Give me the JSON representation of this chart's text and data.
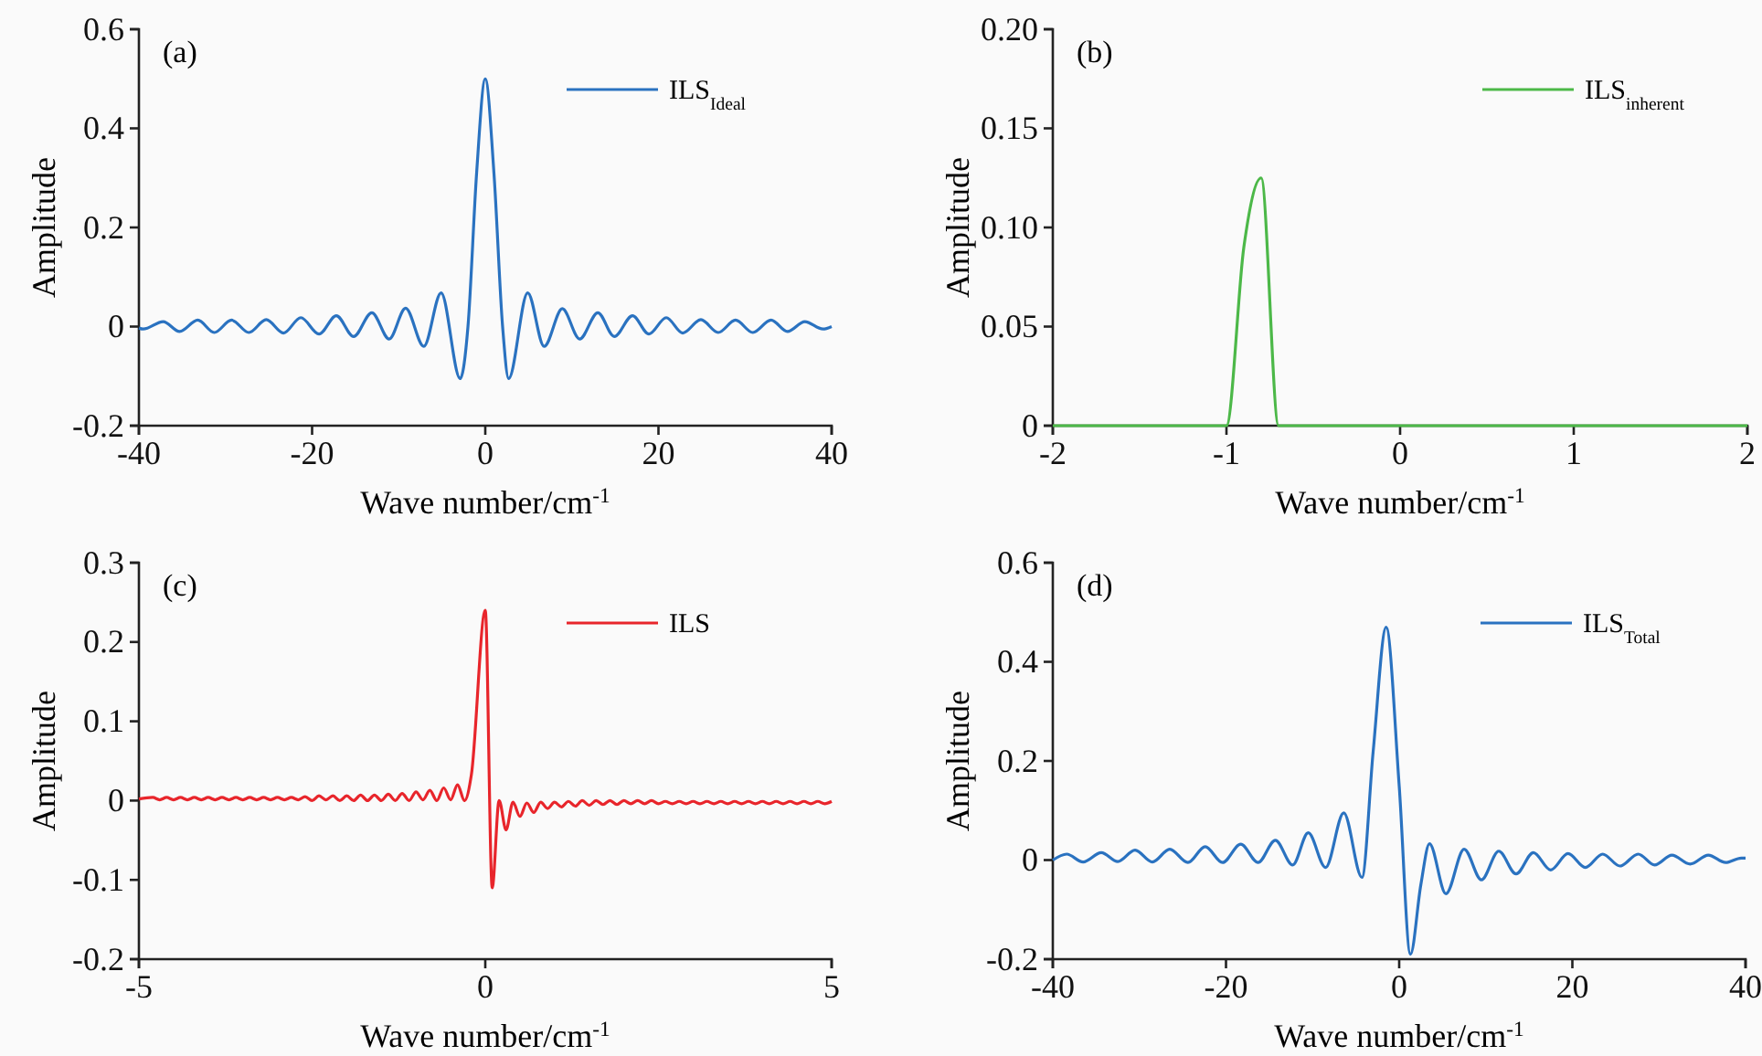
{
  "chart_data": [
    {
      "type": "line",
      "xlabel": "Wave number/cm$^{-1}$",
      "ylabel": "Amplitude",
      "annotations": [
        "(a)"
      ],
      "xlim": [
        -40,
        40
      ],
      "xticks": [
        -40,
        -20,
        0,
        20,
        40
      ],
      "ylim": [
        -0.2,
        0.6
      ],
      "yticks": [
        -0.2,
        0,
        0.2,
        0.4,
        0.6
      ],
      "legend": "top right",
      "series": [
        {
          "name": "ILS$_{Ideal}$",
          "color": "#2a72c0",
          "x": [
            -40,
            -39.5,
            -37.2,
            -35.3,
            -33.2,
            -31.3,
            -29.3,
            -27.3,
            -25.3,
            -23.3,
            -21.3,
            -19.2,
            -17.2,
            -15.2,
            -13.1,
            -11.1,
            -9.2,
            -7.1,
            -5.1,
            -2.9,
            -2,
            -1,
            0,
            1,
            2,
            2.7,
            4.9,
            6.8,
            8.9,
            10.9,
            13,
            14.9,
            17,
            18.9,
            20.9,
            22.8,
            24.9,
            26.9,
            28.9,
            30.9,
            33,
            34.9,
            36.9,
            39,
            40
          ],
          "values": [
            -0.003,
            -0.005,
            0.01,
            -0.01,
            0.013,
            -0.012,
            0.013,
            -0.012,
            0.014,
            -0.013,
            0.018,
            -0.015,
            0.022,
            -0.02,
            0.028,
            -0.025,
            0.037,
            -0.04,
            0.068,
            -0.105,
            0,
            0.31,
            0.5,
            0.31,
            0,
            -0.105,
            0.068,
            -0.04,
            0.036,
            -0.025,
            0.028,
            -0.02,
            0.022,
            -0.015,
            0.018,
            -0.013,
            0.014,
            -0.012,
            0.013,
            -0.012,
            0.013,
            -0.01,
            0.01,
            -0.005,
            0
          ]
        }
      ]
    },
    {
      "type": "line",
      "xlabel": "Wave number/cm$^{-1}$",
      "ylabel": "Amplitude",
      "annotations": [
        "(b)"
      ],
      "xlim": [
        -2,
        2
      ],
      "xticks": [
        -2,
        -1,
        0,
        1,
        2
      ],
      "ylim": [
        0,
        0.2
      ],
      "yticks": [
        0,
        {
          "value": 0.05,
          "label": "0.05"
        },
        {
          "value": 0.1,
          "label": "0.10"
        },
        {
          "value": 0.15,
          "label": "0.15"
        },
        {
          "value": 0.2,
          "label": "0.20"
        }
      ],
      "legend": "top right",
      "series": [
        {
          "name": "ILS$_{inherent}$",
          "color": "#4cb848",
          "x": [
            -2,
            -1,
            -0.9,
            -0.8,
            -0.7,
            2
          ],
          "values": [
            0,
            0,
            0.09,
            0.125,
            0,
            0
          ]
        }
      ]
    },
    {
      "type": "line",
      "xlabel": "Wave number/cm$^{-1}$",
      "ylabel": "Amplitude",
      "annotations": [
        "(c)"
      ],
      "xlim": [
        -5,
        5
      ],
      "xticks": [
        -5,
        0,
        5
      ],
      "ylim": [
        -0.2,
        0.3
      ],
      "yticks": [
        -0.2,
        -0.1,
        0,
        0.1,
        0.2,
        0.3
      ],
      "legend": "top right",
      "series": [
        {
          "name": "ILS",
          "color": "#e8252b",
          "x": [
            -5,
            -4.8,
            -4.7,
            -4.6,
            -4.5,
            -4.4,
            -4.3,
            -4.2,
            -4.1,
            -4,
            -3.9,
            -3.8,
            -3.7,
            -3.6,
            -3.5,
            -3.4,
            -3.3,
            -3.2,
            -3.1,
            -3,
            -2.9,
            -2.8,
            -2.7,
            -2.6,
            -2.5,
            -2.4,
            -2.3,
            -2.2,
            -2.1,
            -2,
            -1.9,
            -1.8,
            -1.7,
            -1.6,
            -1.5,
            -1.4,
            -1.3,
            -1.2,
            -1.1,
            -1,
            -0.9,
            -0.8,
            -0.7,
            -0.6,
            -0.5,
            -0.4,
            -0.3,
            -0.2,
            0,
            0.1,
            0.2,
            0.3,
            0.4,
            0.5,
            0.6,
            0.7,
            0.8,
            0.9,
            1,
            1.1,
            1.2,
            1.3,
            1.4,
            1.5,
            1.6,
            1.7,
            1.8,
            1.9,
            2,
            2.1,
            2.2,
            2.3,
            2.4,
            2.5,
            2.6,
            2.7,
            2.8,
            2.9,
            3,
            3.1,
            3.2,
            3.3,
            3.4,
            3.5,
            3.6,
            3.7,
            3.8,
            3.9,
            4,
            4.1,
            4.2,
            4.3,
            4.4,
            4.5,
            4.6,
            4.7,
            4.8,
            4.9,
            5
          ],
          "values": [
            0.002,
            0.004,
            0.001,
            0.004,
            0.001,
            0.004,
            0.001,
            0.004,
            0.001,
            0.004,
            0.001,
            0.004,
            0.001,
            0.004,
            0.001,
            0.004,
            0.001,
            0.004,
            0.001,
            0.004,
            0.001,
            0.004,
            0.001,
            0.005,
            0,
            0.006,
            0.001,
            0.006,
            0,
            0.006,
            0,
            0.007,
            0,
            0.007,
            0,
            0.008,
            0,
            0.009,
            0,
            0.011,
            0.001,
            0.013,
            0,
            0.016,
            0.001,
            0.02,
            0,
            0.033,
            0.24,
            -0.11,
            0,
            -0.037,
            -0.002,
            -0.02,
            -0.003,
            -0.015,
            -0.002,
            -0.01,
            -0.002,
            -0.008,
            -0.001,
            -0.007,
            0,
            -0.006,
            0,
            -0.005,
            0,
            -0.005,
            0,
            -0.004,
            0,
            -0.004,
            0,
            -0.004,
            -0.001,
            -0.004,
            -0.001,
            -0.004,
            -0.001,
            -0.004,
            -0.001,
            -0.004,
            -0.001,
            -0.004,
            -0.001,
            -0.004,
            -0.001,
            -0.004,
            -0.001,
            -0.004,
            -0.001,
            -0.004,
            -0.001,
            -0.004,
            -0.001,
            -0.004,
            -0.001,
            -0.004,
            -0.001
          ]
        }
      ]
    },
    {
      "type": "line",
      "xlabel": "Wave number/cm$^{-1}$",
      "ylabel": "Amplitude",
      "annotations": [
        "(d)"
      ],
      "xlim": [
        -40,
        40
      ],
      "xticks": [
        -40,
        -20,
        0,
        20,
        40
      ],
      "ylim": [
        -0.2,
        0.6
      ],
      "yticks": [
        -0.2,
        0,
        0.2,
        0.4,
        0.6
      ],
      "legend": "top right",
      "series": [
        {
          "name": "ILS$_{Total}$",
          "color": "#2a72c0",
          "x": [
            -40,
            -38.4,
            -36.5,
            -34.4,
            -32.5,
            -30.5,
            -28.5,
            -26.5,
            -24.4,
            -22.4,
            -20.4,
            -18.3,
            -16.3,
            -14.3,
            -12.3,
            -10.5,
            -8.5,
            -6.4,
            -4.3,
            -3,
            -1.5,
            0,
            1.3,
            2.5,
            3.5,
            5.4,
            7.5,
            9.5,
            11.5,
            13.5,
            15.5,
            17.5,
            19.5,
            21.5,
            23.5,
            25.5,
            27.6,
            29.5,
            31.5,
            33.6,
            35.7,
            37.7,
            39.5,
            40
          ],
          "values": [
            0,
            0.012,
            -0.004,
            0.015,
            -0.003,
            0.02,
            -0.004,
            0.022,
            -0.005,
            0.027,
            -0.005,
            0.032,
            -0.005,
            0.04,
            -0.01,
            0.055,
            -0.015,
            0.095,
            -0.035,
            0.22,
            0.47,
            0.15,
            -0.19,
            -0.05,
            0.033,
            -0.068,
            0.022,
            -0.04,
            0.018,
            -0.028,
            0.015,
            -0.02,
            0.013,
            -0.015,
            0.012,
            -0.012,
            0.012,
            -0.01,
            0.01,
            -0.008,
            0.01,
            -0.005,
            0.004,
            0.004
          ]
        }
      ]
    }
  ]
}
